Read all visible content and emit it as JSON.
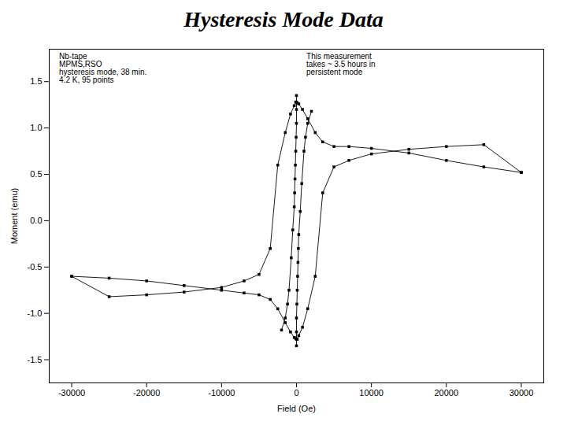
{
  "chart_data": {
    "type": "line",
    "title": "Hysteresis Mode Data",
    "xlabel": "Field (Oe)",
    "ylabel": "Moment (emu)",
    "xlim": [
      -33000,
      33000
    ],
    "ylim": [
      -1.75,
      1.85
    ],
    "xticks": [
      -30000,
      -20000,
      -10000,
      0,
      10000,
      20000,
      30000
    ],
    "yticks": [
      -1.5,
      {
        "value": -1.0,
        "label": "-1.0"
      },
      -0.5,
      {
        "value": 0.0,
        "label": "0.0"
      },
      0.5,
      {
        "value": 1.0,
        "label": "1.0"
      },
      1.5
    ],
    "grid": false,
    "annotations": [
      "Nb-tape\nMPMS,RSO\nhysteresis mode, 38 min.\n4.2 K, 95 points",
      "This measurement\ntakes ~ 3.5 hours in\npersistent mode"
    ],
    "series": [
      {
        "color": "#000000",
        "marker": "square",
        "x": [
          30000,
          25000,
          20000,
          15000,
          10000,
          7000,
          5000,
          3500,
          2500,
          1500,
          800,
          300,
          100,
          0,
          -100,
          -300,
          -800,
          -1500,
          -2500,
          -3500,
          -5000,
          -7000,
          -10000,
          -15000,
          -20000,
          -25000,
          -30000
        ],
        "values": [
          0.52,
          0.58,
          0.65,
          0.73,
          0.78,
          0.8,
          0.8,
          0.85,
          0.95,
          1.1,
          1.2,
          1.26,
          1.27,
          1.28,
          1.28,
          1.24,
          1.15,
          0.95,
          0.6,
          -0.3,
          -0.58,
          -0.65,
          -0.72,
          -0.77,
          -0.8,
          -0.82,
          -0.6
        ]
      },
      {
        "color": "#000000",
        "marker": "square",
        "x": [
          -30000,
          -25000,
          -20000,
          -15000,
          -10000,
          -7000,
          -5000,
          -3500,
          -2500,
          -1500,
          -800,
          -300,
          -100,
          0,
          100,
          300,
          800,
          1500,
          2500,
          3500,
          5000,
          7000,
          10000,
          15000,
          20000,
          25000,
          30000
        ],
        "values": [
          -0.6,
          -0.62,
          -0.65,
          -0.7,
          -0.75,
          -0.78,
          -0.8,
          -0.85,
          -0.95,
          -1.1,
          -1.2,
          -1.26,
          -1.27,
          -1.28,
          -1.28,
          -1.24,
          -1.15,
          -0.95,
          -0.6,
          0.3,
          0.58,
          0.65,
          0.72,
          0.77,
          0.8,
          0.82,
          0.52
        ]
      },
      {
        "color": "#000000",
        "marker": "square",
        "x": [
          0,
          0,
          0,
          50,
          100,
          150,
          200,
          250,
          300,
          500,
          700,
          1000,
          1200,
          1500,
          2000
        ],
        "values": [
          -1.35,
          -1.2,
          -1.05,
          -0.9,
          -0.75,
          -0.6,
          -0.45,
          -0.3,
          -0.15,
          0.1,
          0.4,
          0.75,
          0.9,
          1.05,
          1.18
        ]
      },
      {
        "color": "#000000",
        "marker": "square",
        "x": [
          0,
          0,
          0,
          -50,
          -100,
          -150,
          -200,
          -250,
          -300,
          -500,
          -700,
          -1000,
          -1200,
          -1500,
          -2000
        ],
        "values": [
          1.35,
          1.2,
          1.05,
          0.9,
          0.75,
          0.6,
          0.45,
          0.3,
          0.15,
          -0.1,
          -0.4,
          -0.75,
          -0.9,
          -1.05,
          -1.18
        ]
      }
    ]
  }
}
